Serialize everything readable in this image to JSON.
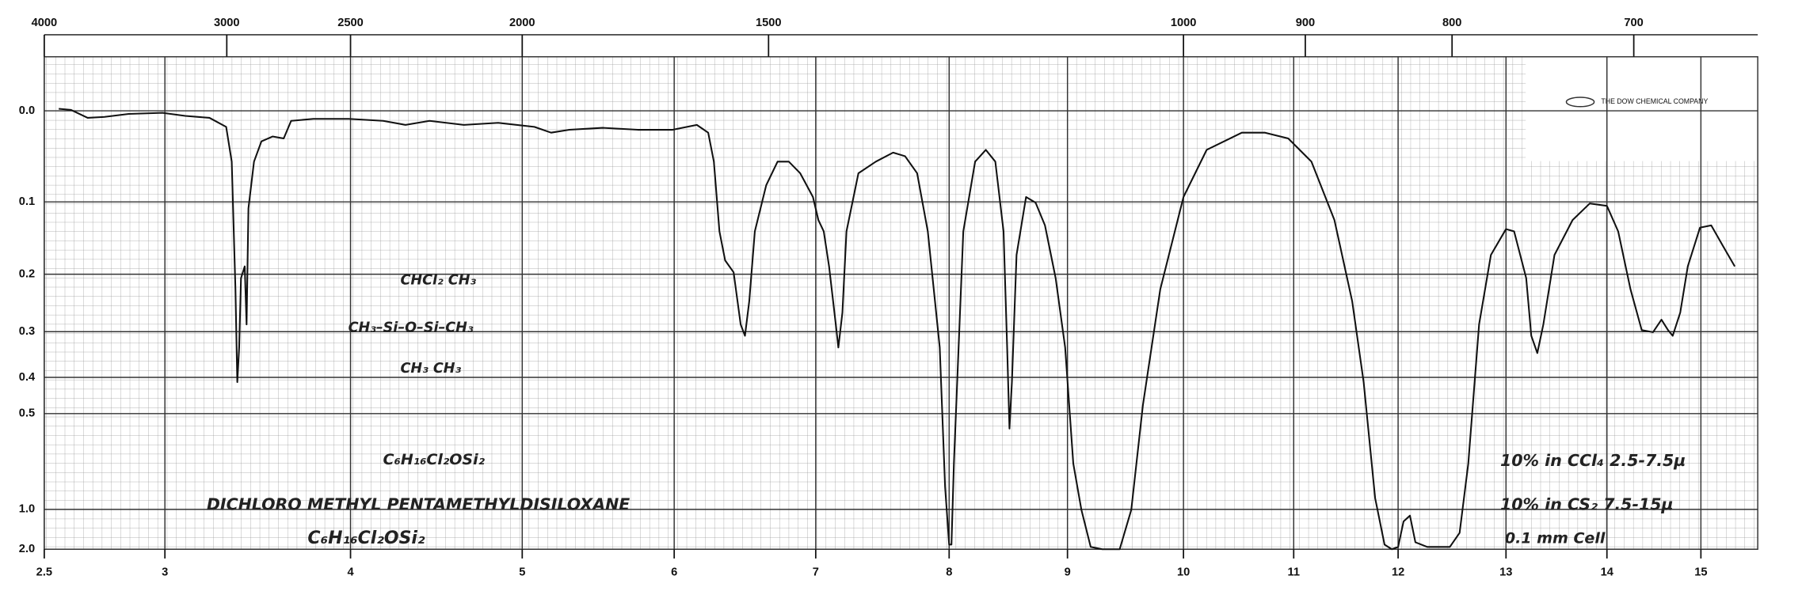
{
  "chart_data": {
    "type": "line",
    "yscale": "absorbance",
    "x2scale": "reciprocal",
    "grid": true,
    "color": "#111111",
    "xlim": [
      2.5,
      15.6
    ],
    "xticks": [
      2.5,
      3,
      4,
      5,
      6,
      7,
      8,
      9,
      10,
      11,
      12,
      13,
      14,
      15
    ],
    "x2lim": [
      4000,
      641
    ],
    "x2ticks": [
      4000,
      3000,
      2500,
      2000,
      1500,
      1000,
      900,
      800,
      700
    ],
    "ylim": [
      -0.05,
      2
    ],
    "yticks": [
      {
        "value": 0,
        "label": "0.0"
      },
      0.1,
      0.2,
      0.3,
      0.4,
      0.5,
      {
        "value": 1,
        "label": "1.0"
      },
      {
        "value": 2,
        "label": "2.0"
      }
    ],
    "x": [
      2.56,
      2.61,
      2.68,
      2.75,
      2.85,
      2.99,
      3.11,
      3.24,
      3.33,
      3.36,
      3.38,
      3.39,
      3.4,
      3.41,
      3.43,
      3.44,
      3.45,
      3.48,
      3.52,
      3.58,
      3.64,
      3.68,
      3.8,
      3.99,
      4.19,
      4.32,
      4.46,
      4.66,
      4.86,
      5.08,
      5.19,
      5.31,
      5.53,
      5.76,
      5.99,
      6.16,
      6.24,
      6.28,
      6.32,
      6.36,
      6.42,
      6.47,
      6.5,
      6.53,
      6.57,
      6.65,
      6.73,
      6.81,
      6.89,
      6.98,
      7.02,
      7.06,
      7.1,
      7.15,
      7.17,
      7.2,
      7.23,
      7.32,
      7.45,
      7.58,
      7.67,
      7.76,
      7.84,
      7.93,
      7.97,
      8.0,
      8.02,
      8.04,
      8.12,
      8.22,
      8.31,
      8.39,
      8.46,
      8.49,
      8.51,
      8.53,
      8.57,
      8.65,
      8.73,
      8.81,
      8.9,
      8.98,
      9.05,
      9.12,
      9.2,
      9.3,
      9.45,
      9.55,
      9.65,
      9.8,
      10.0,
      10.21,
      10.53,
      10.74,
      10.95,
      11.17,
      11.39,
      11.56,
      11.67,
      11.78,
      11.87,
      11.94,
      12.0,
      12.05,
      12.11,
      12.16,
      12.27,
      12.48,
      12.57,
      12.65,
      12.75,
      12.86,
      13.0,
      13.08,
      13.2,
      13.25,
      13.31,
      13.37,
      13.48,
      13.66,
      13.83,
      14.0,
      14.12,
      14.25,
      14.37,
      14.49,
      14.58,
      14.65,
      14.7,
      14.78,
      14.86,
      14.99,
      15.11,
      15.23,
      15.36
    ],
    "values": [
      -0.002,
      -0.001,
      0.007,
      0.006,
      0.003,
      0.002,
      0.005,
      0.007,
      0.016,
      0.053,
      0.224,
      0.412,
      0.332,
      0.206,
      0.188,
      0.286,
      0.108,
      0.053,
      0.031,
      0.026,
      0.028,
      0.01,
      0.008,
      0.008,
      0.01,
      0.014,
      0.01,
      0.014,
      0.012,
      0.016,
      0.022,
      0.019,
      0.017,
      0.019,
      0.019,
      0.014,
      0.022,
      0.053,
      0.138,
      0.179,
      0.197,
      0.286,
      0.308,
      0.244,
      0.138,
      0.08,
      0.053,
      0.053,
      0.066,
      0.094,
      0.123,
      0.138,
      0.188,
      0.286,
      0.332,
      0.264,
      0.138,
      0.066,
      0.053,
      0.043,
      0.047,
      0.066,
      0.138,
      0.332,
      0.82,
      1.69,
      1.69,
      0.691,
      0.138,
      0.053,
      0.04,
      0.053,
      0.138,
      0.332,
      0.549,
      0.412,
      0.171,
      0.094,
      0.101,
      0.13,
      0.206,
      0.332,
      0.691,
      1.004,
      1.82,
      2.0,
      2.0,
      1.004,
      0.475,
      0.224,
      0.094,
      0.04,
      0.022,
      0.022,
      0.028,
      0.053,
      0.123,
      0.244,
      0.412,
      0.902,
      1.69,
      2.0,
      1.82,
      1.138,
      1.066,
      1.59,
      1.82,
      1.82,
      1.33,
      0.691,
      0.286,
      0.171,
      0.135,
      0.138,
      0.206,
      0.308,
      0.344,
      0.286,
      0.171,
      0.123,
      0.102,
      0.105,
      0.138,
      0.224,
      0.297,
      0.301,
      0.277,
      0.297,
      0.308,
      0.264,
      0.188,
      0.133,
      0.13,
      0.157,
      0.188
    ],
    "annotations": [
      "CHCl₂      CH₃",
      "CH₃–Si–O–Si–CH₃",
      "CH₃        CH₃",
      "C₆H₁₆Cl₂OSi₂",
      "DICHLORO METHYL PENTAMETHYLDISILOXANE",
      "C₆H₁₆Cl₂OSi₂",
      "10% in CCl₄ 2.5-7.5µ",
      "10% in CS₂ 7.5-15µ",
      "0.1 mm Cell"
    ],
    "logo_text": "THE DOW CHEMICAL COMPANY"
  }
}
